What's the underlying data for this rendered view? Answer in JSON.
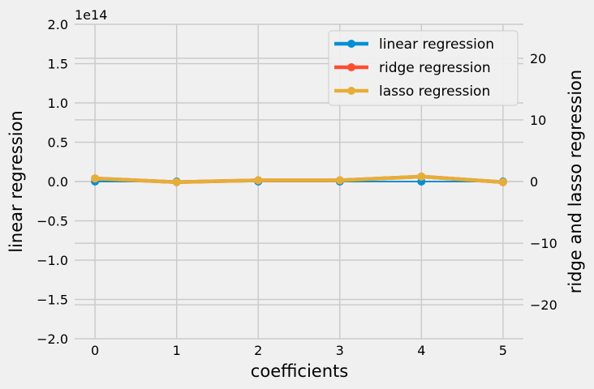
{
  "chart_data": {
    "type": "line",
    "x": [
      0,
      1,
      2,
      3,
      4,
      5
    ],
    "xlabel": "coefficients",
    "xlim": [
      -0.25,
      5.25
    ],
    "xticks": [
      "0",
      "1",
      "2",
      "3",
      "4",
      "5"
    ],
    "left_axis": {
      "label": "linear regression",
      "offset_text": "1e14",
      "ylim": [
        -2.0,
        2.0
      ],
      "tick_values": [
        -2.0,
        -1.5,
        -1.0,
        -0.5,
        0.0,
        0.5,
        1.0,
        1.5,
        2.0
      ],
      "tick_labels": [
        "−2.0",
        "−1.5",
        "−1.0",
        "−0.5",
        "0.0",
        "0.5",
        "1.0",
        "1.5",
        "2.0"
      ]
    },
    "right_axis": {
      "label": "ridge and lasso regression",
      "ylim": [
        -25.5,
        25.5
      ],
      "tick_values": [
        -20,
        -10,
        0,
        10,
        20
      ],
      "tick_labels": [
        "−20",
        "−10",
        "0",
        "10",
        "20"
      ]
    },
    "series": [
      {
        "name": "linear regression",
        "axis": "left",
        "color": "#008fd5",
        "values": [
          0.0,
          0.0,
          0.0,
          0.0,
          0.0,
          0.0
        ]
      },
      {
        "name": "ridge regression",
        "axis": "right",
        "color": "#fc4f30",
        "values": [
          0.5,
          -0.1,
          0.2,
          0.2,
          0.8,
          -0.1
        ]
      },
      {
        "name": "lasso regression",
        "axis": "right",
        "color": "#e5ae38",
        "values": [
          0.5,
          -0.1,
          0.2,
          0.2,
          0.8,
          -0.1
        ]
      }
    ],
    "grid": true,
    "legend_position": "top-right",
    "background": "#f0f0f0"
  }
}
